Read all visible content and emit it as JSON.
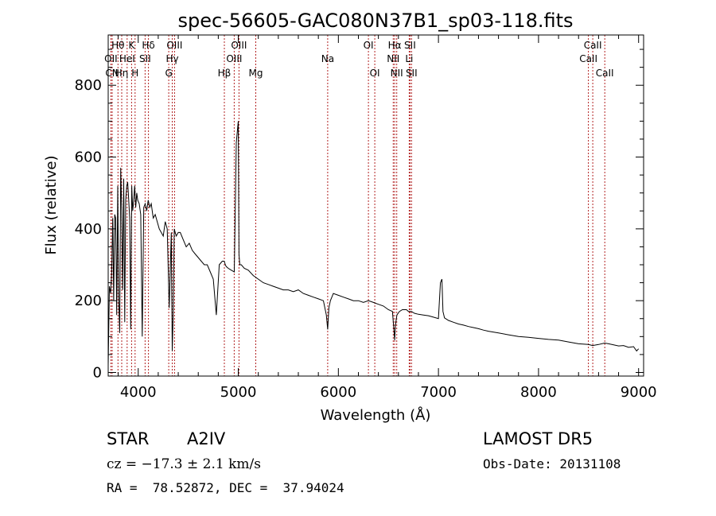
{
  "chart_data": {
    "type": "line",
    "title": "spec-56605-GAC080N37B1_sp03-118.fits",
    "xlabel": "Wavelength (Å)",
    "ylabel": "Flux (relative)",
    "xlim": [
      3700,
      9050
    ],
    "ylim": [
      -10,
      940
    ],
    "xticks": [
      4000,
      5000,
      6000,
      7000,
      8000,
      9000
    ],
    "yticks": [
      0,
      200,
      400,
      600,
      800
    ],
    "grid": false,
    "line_color": "#000000",
    "marker_color": "#b22222",
    "spectral_lines": [
      {
        "label": "Hθ",
        "wave": 3798,
        "row": 0
      },
      {
        "label": "OII",
        "wave": 3727,
        "row": 1
      },
      {
        "label": "CN",
        "wave": 3740,
        "row": 2
      },
      {
        "label": "Hη",
        "wave": 3835,
        "row": 2
      },
      {
        "label": "HeI",
        "wave": 3889,
        "row": 1
      },
      {
        "label": "K",
        "wave": 3934,
        "row": 0
      },
      {
        "label": "H",
        "wave": 3969,
        "row": 2
      },
      {
        "label": "Hδ",
        "wave": 4102,
        "row": 0
      },
      {
        "label": "SII",
        "wave": 4069,
        "row": 1
      },
      {
        "label": "OIII",
        "wave": 4363,
        "row": 0
      },
      {
        "label": "Hγ",
        "wave": 4340,
        "row": 1
      },
      {
        "label": "G",
        "wave": 4305,
        "row": 2
      },
      {
        "label": "Hβ",
        "wave": 4861,
        "row": 2
      },
      {
        "label": "OIII",
        "wave": 4959,
        "row": 1
      },
      {
        "label": "OIII",
        "wave": 5007,
        "row": 0
      },
      {
        "label": "Mg",
        "wave": 5175,
        "row": 2
      },
      {
        "label": "Na",
        "wave": 5893,
        "row": 1
      },
      {
        "label": "OI",
        "wave": 6300,
        "row": 0
      },
      {
        "label": "OI",
        "wave": 6364,
        "row": 2
      },
      {
        "label": "Hα",
        "wave": 6563,
        "row": 0
      },
      {
        "label": "NII",
        "wave": 6548,
        "row": 1
      },
      {
        "label": "NII",
        "wave": 6583,
        "row": 2
      },
      {
        "label": "Li",
        "wave": 6708,
        "row": 1
      },
      {
        "label": "SII",
        "wave": 6716,
        "row": 0
      },
      {
        "label": "SII",
        "wave": 6731,
        "row": 2
      },
      {
        "label": "CaII",
        "wave": 8542,
        "row": 0
      },
      {
        "label": "CaII",
        "wave": 8498,
        "row": 1
      },
      {
        "label": "CaII",
        "wave": 8662,
        "row": 2
      }
    ],
    "series": [
      {
        "x": [
          3700,
          3712,
          3725,
          3735,
          3745,
          3755,
          3765,
          3775,
          3785,
          3795,
          3805,
          3815,
          3825,
          3835,
          3845,
          3855,
          3865,
          3875,
          3885,
          3895,
          3905,
          3915,
          3925,
          3935,
          3945,
          3955,
          3965,
          3975,
          3985,
          3995,
          4010,
          4025,
          4040,
          4055,
          4070,
          4085,
          4100,
          4115,
          4130,
          4150,
          4170,
          4190,
          4210,
          4230,
          4250,
          4270,
          4290,
          4310,
          4330,
          4340,
          4350,
          4360,
          4380,
          4400,
          4420,
          4450,
          4480,
          4510,
          4540,
          4570,
          4600,
          4630,
          4660,
          4690,
          4720,
          4750,
          4780,
          4810,
          4840,
          4860,
          4870,
          4880,
          4900,
          4930,
          4960,
          4980,
          5000,
          5007,
          5015,
          5030,
          5060,
          5100,
          5150,
          5200,
          5250,
          5300,
          5350,
          5400,
          5450,
          5500,
          5550,
          5600,
          5650,
          5700,
          5750,
          5800,
          5850,
          5880,
          5893,
          5905,
          5920,
          5950,
          6000,
          6050,
          6100,
          6150,
          6200,
          6250,
          6300,
          6350,
          6400,
          6450,
          6500,
          6540,
          6555,
          6563,
          6570,
          6585,
          6610,
          6640,
          6680,
          6700,
          6730,
          6760,
          6800,
          6850,
          6900,
          6950,
          7000,
          7020,
          7035,
          7045,
          7060,
          7100,
          7150,
          7200,
          7250,
          7300,
          7350,
          7400,
          7450,
          7500,
          7600,
          7700,
          7800,
          7900,
          8000,
          8100,
          8200,
          8300,
          8400,
          8500,
          8540,
          8600,
          8660,
          8700,
          8800,
          8850,
          8900,
          8950,
          8980,
          9000
        ],
        "y": [
          20,
          240,
          220,
          280,
          430,
          200,
          440,
          430,
          160,
          520,
          210,
          110,
          570,
          450,
          230,
          540,
          140,
          480,
          520,
          530,
          480,
          430,
          120,
          520,
          450,
          480,
          520,
          460,
          500,
          480,
          470,
          440,
          100,
          460,
          470,
          450,
          480,
          460,
          470,
          430,
          440,
          420,
          400,
          390,
          380,
          420,
          400,
          180,
          390,
          60,
          170,
          400,
          380,
          390,
          390,
          370,
          350,
          360,
          340,
          330,
          320,
          310,
          300,
          300,
          280,
          260,
          160,
          300,
          310,
          310,
          300,
          295,
          290,
          285,
          280,
          640,
          700,
          330,
          300,
          300,
          290,
          285,
          270,
          260,
          250,
          245,
          240,
          235,
          230,
          230,
          225,
          230,
          220,
          215,
          210,
          205,
          200,
          160,
          120,
          180,
          200,
          220,
          215,
          210,
          205,
          200,
          200,
          195,
          200,
          195,
          190,
          185,
          175,
          170,
          120,
          90,
          130,
          160,
          170,
          175,
          175,
          170,
          170,
          165,
          162,
          160,
          158,
          154,
          150,
          250,
          260,
          170,
          152,
          145,
          140,
          135,
          132,
          128,
          125,
          122,
          118,
          115,
          110,
          105,
          100,
          98,
          95,
          92,
          90,
          85,
          80,
          78,
          75,
          78,
          82,
          80,
          74,
          75,
          70,
          72,
          60,
          66
        ]
      }
    ]
  },
  "footer": {
    "object_class": "STAR",
    "subclass": "A2IV",
    "survey": "LAMOST DR5",
    "cz": "cz = −17.3 ± 2.1 km/s",
    "obs_date": "Obs-Date: 20131108",
    "coords": "RA =  78.52872, DEC =  37.94024"
  }
}
